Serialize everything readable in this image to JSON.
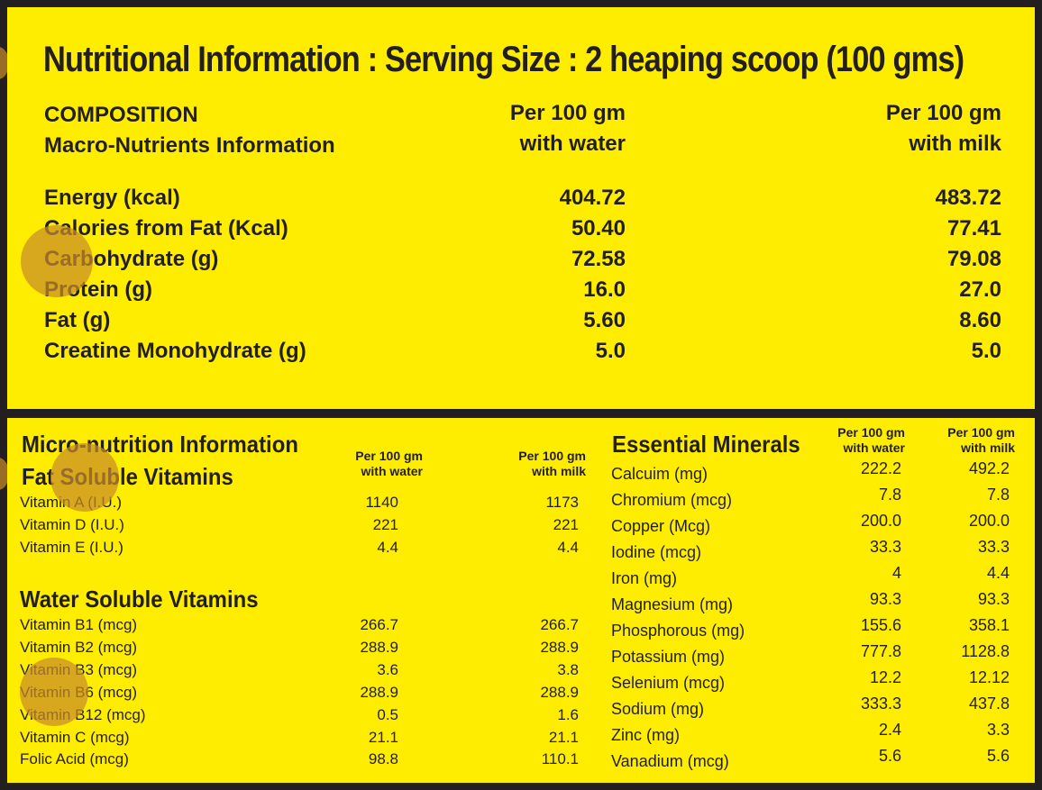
{
  "title": "Nutritional Information : Serving Size : 2 heaping scoop (100 gms)",
  "macro": {
    "heading1": "COMPOSITION",
    "heading2": "Macro-Nutrients Information",
    "col1_line1": "Per 100 gm",
    "col1_line2": "with water",
    "col2_line1": "Per 100 gm",
    "col2_line2": "with milk",
    "rows": [
      {
        "label": "Energy (kcal)",
        "water": "404.72",
        "milk": "483.72"
      },
      {
        "label": "Calories from Fat (Kcal)",
        "water": "50.40",
        "milk": "77.41"
      },
      {
        "label": "Carbohydrate  (g)",
        "water": "72.58",
        "milk": "79.08"
      },
      {
        "label": "Protein (g)",
        "water": "16.0",
        "milk": "27.0"
      },
      {
        "label": "Fat (g)",
        "water": "5.60",
        "milk": "8.60"
      },
      {
        "label": "Creatine Monohydrate (g)",
        "water": "5.0",
        "milk": "5.0"
      }
    ]
  },
  "micro": {
    "heading": "Micro-nutrition Information",
    "col1_line1": "Per 100 gm",
    "col1_line2": "with water",
    "col2_line1": "Per 100 gm",
    "col2_line2": "with milk",
    "fat_soluble_title": "Fat Soluble Vitamins",
    "fat_soluble": [
      {
        "label": "Vitamin A (I.U.)",
        "water": "1140",
        "milk": "1173"
      },
      {
        "label": "Vitamin D (I.U.)",
        "water": "221",
        "milk": "221"
      },
      {
        "label": "Vitamin E (I.U.)",
        "water": "4.4",
        "milk": "4.4"
      }
    ],
    "water_soluble_title": "Water Soluble Vitamins",
    "water_soluble": [
      {
        "label": "Vitamin B1 (mcg)",
        "water": "266.7",
        "milk": "266.7"
      },
      {
        "label": "Vitamin B2 (mcg)",
        "water": "288.9",
        "milk": "288.9"
      },
      {
        "label": "Vitamin B3 (mcg)",
        "water": "3.6",
        "milk": "3.8"
      },
      {
        "label": "Vitamin B6 (mcg)",
        "water": "288.9",
        "milk": "288.9"
      },
      {
        "label": "Vitamin B12 (mcg)",
        "water": "0.5",
        "milk": "1.6"
      },
      {
        "label": "Vitamin C (mcg)",
        "water": "21.1",
        "milk": "21.1"
      },
      {
        "label": "Folic Acid (mcg)",
        "water": "98.8",
        "milk": "110.1"
      }
    ]
  },
  "minerals": {
    "heading": "Essential Minerals",
    "col1_line1": "Per 100 gm",
    "col1_line2": "with water",
    "col2_line1": "Per 100 gm",
    "col2_line2": "with milk",
    "rows": [
      {
        "label": "Calcuim (mg)",
        "water": "222.2",
        "milk": "492.2"
      },
      {
        "label": "Chromium (mcg)",
        "water": "7.8",
        "milk": "7.8"
      },
      {
        "label": "Copper (Mcg)",
        "water": "200.0",
        "milk": "200.0"
      },
      {
        "label": "Iodine (mcg)",
        "water": "33.3",
        "milk": "33.3"
      },
      {
        "label": "Iron (mg)",
        "water": "4",
        "milk": "4.4"
      },
      {
        "label": "Magnesium (mg)",
        "water": "93.3",
        "milk": "93.3"
      },
      {
        "label": "Phosphorous (mg)",
        "water": "155.6",
        "milk": "358.1"
      },
      {
        "label": "Potassium (mg)",
        "water": "777.8",
        "milk": "1128.8"
      },
      {
        "label": "Selenium (mcg)",
        "water": "12.2",
        "milk": "12.12"
      },
      {
        "label": "Sodium (mg)",
        "water": "333.3",
        "milk": "437.8"
      },
      {
        "label": "Zinc (mg)",
        "water": "2.4",
        "milk": "3.3"
      },
      {
        "label": "Vanadium (mcg)",
        "water": "5.6",
        "milk": "5.6"
      }
    ]
  },
  "colors": {
    "panel": "#ffed00",
    "border": "#231f20",
    "text": "#231f20",
    "marker": "#c88c28"
  }
}
